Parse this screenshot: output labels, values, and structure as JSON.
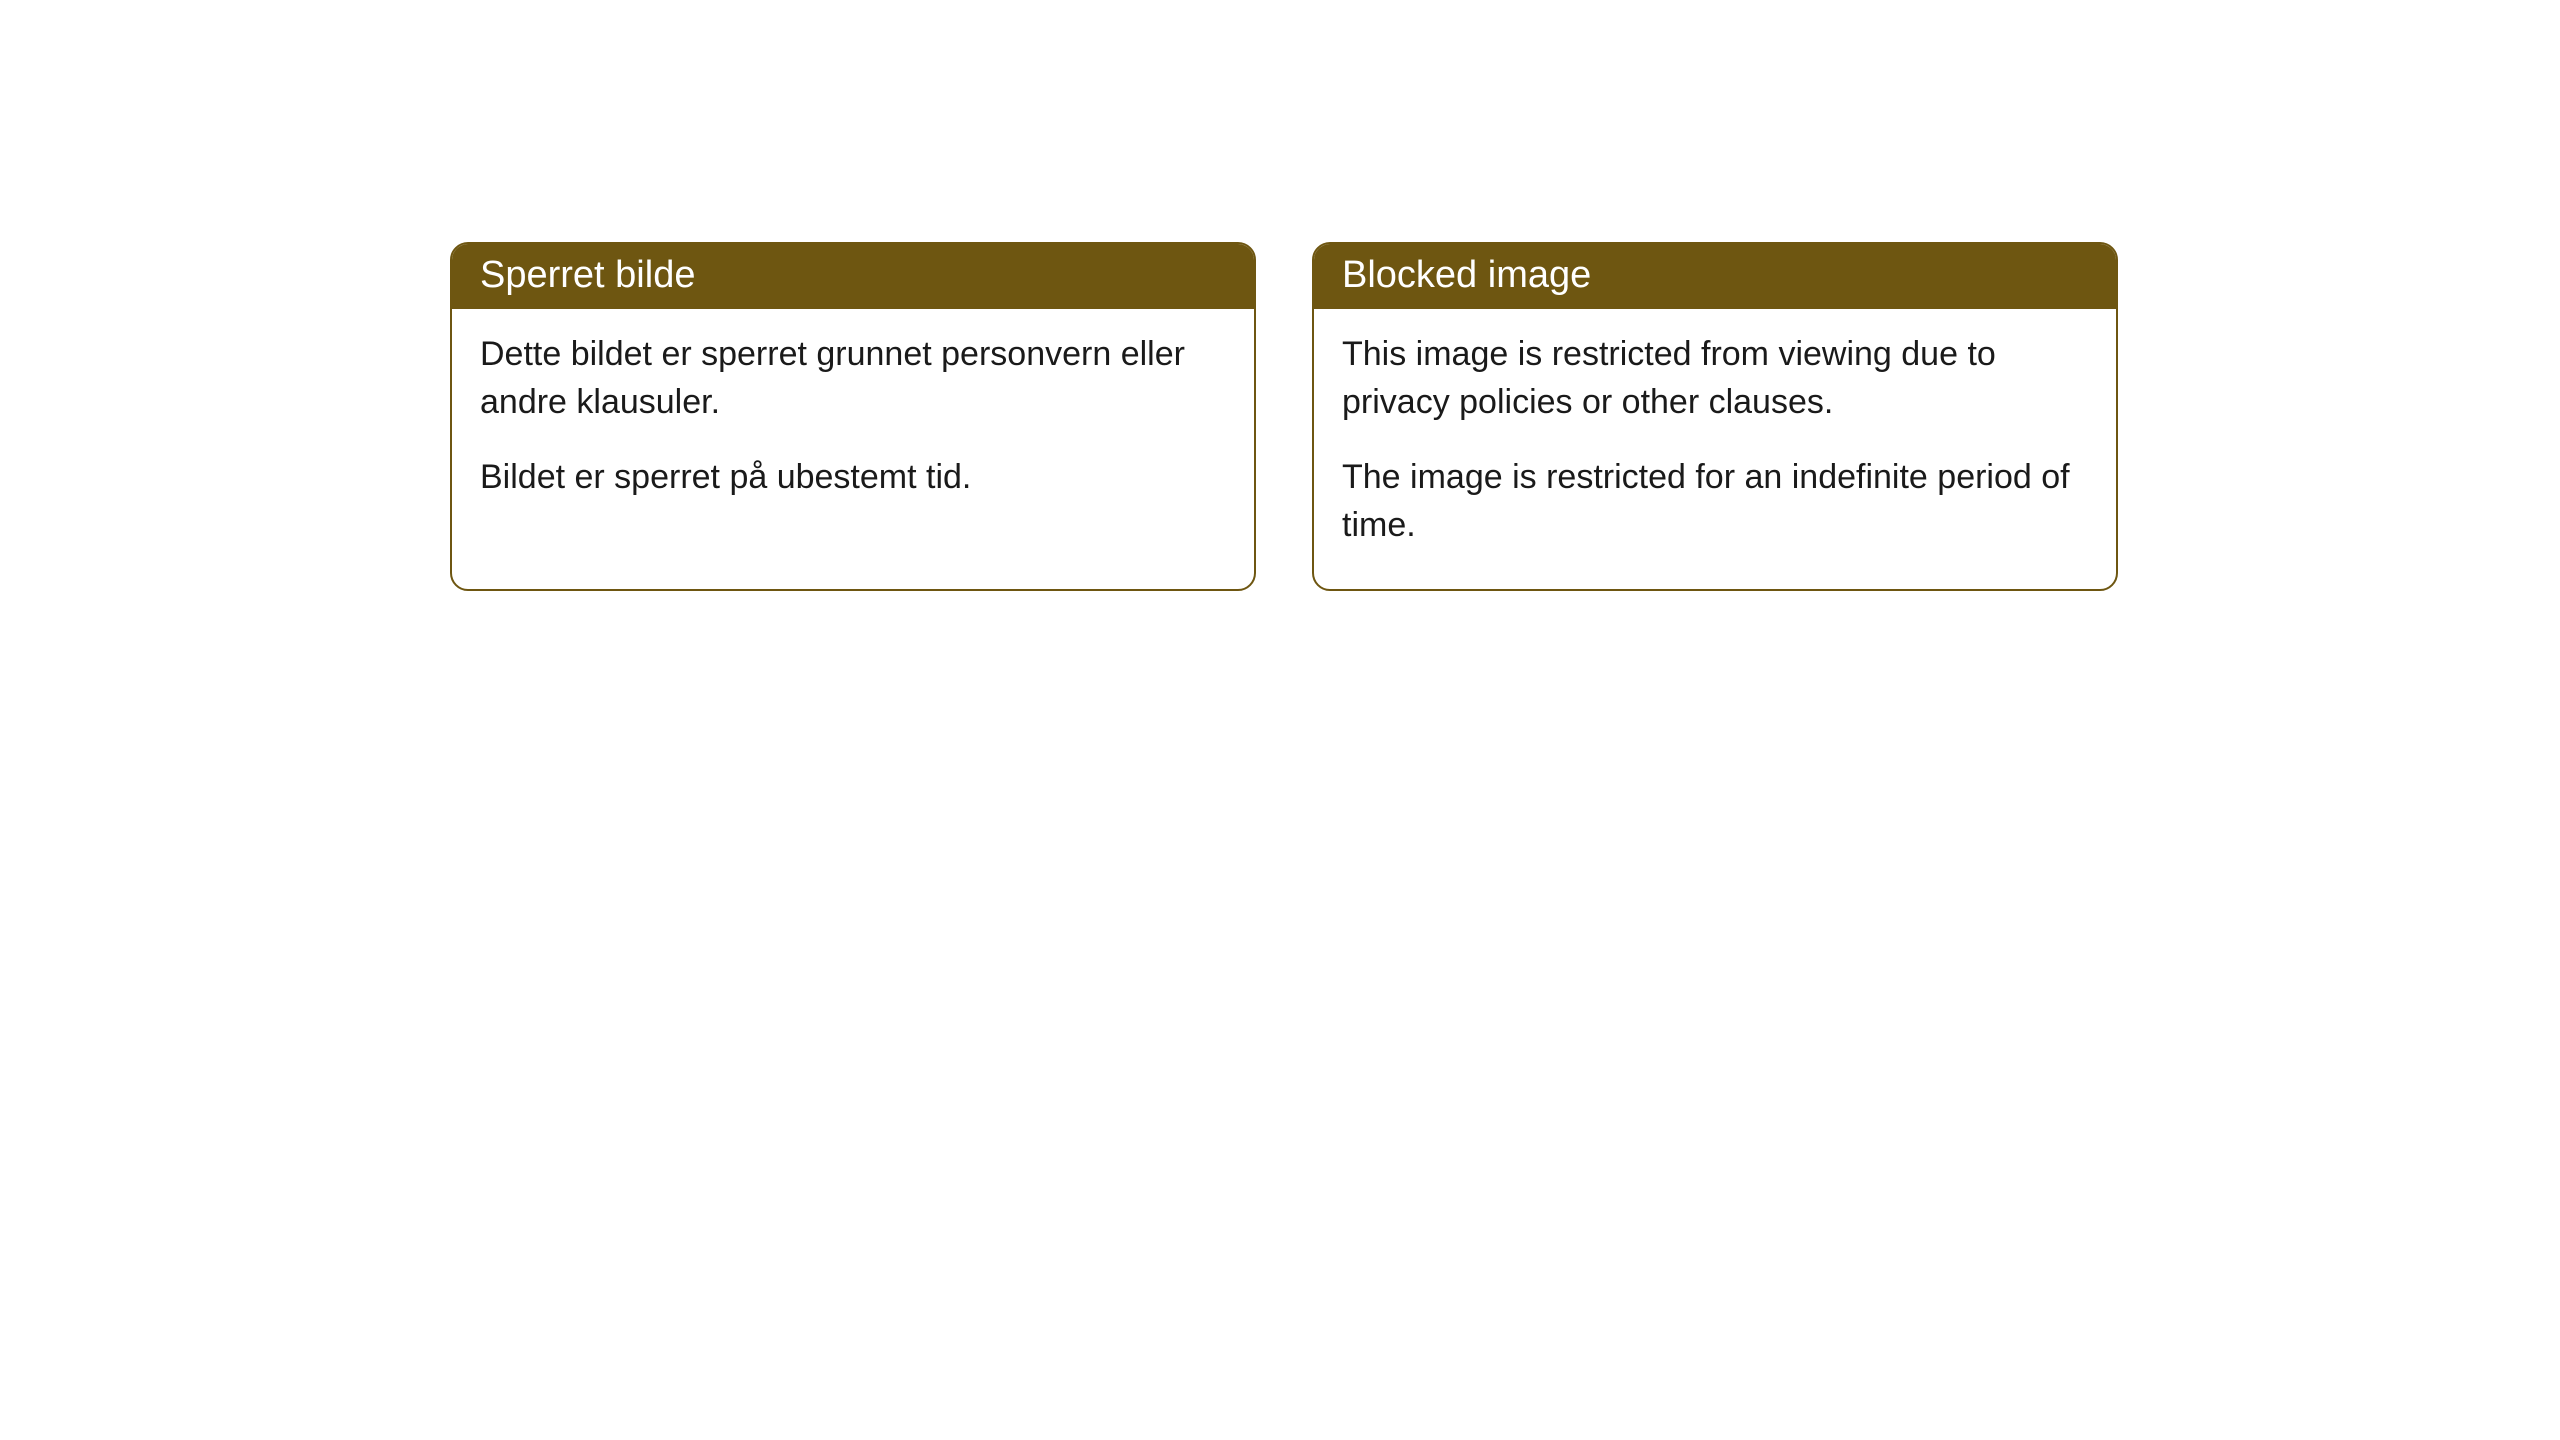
{
  "cards": [
    {
      "title": "Sperret bilde",
      "paragraph1": "Dette bildet er sperret grunnet personvern eller andre klausuler.",
      "paragraph2": "Bildet er sperret på ubestemt tid."
    },
    {
      "title": "Blocked image",
      "paragraph1": "This image is restricted from viewing due to privacy policies or other clauses.",
      "paragraph2": "The image is restricted for an indefinite period of time."
    }
  ],
  "styling": {
    "header_background": "#6e5611",
    "header_text_color": "#ffffff",
    "border_color": "#6e5611",
    "card_background": "#ffffff",
    "body_text_color": "#1a1a1a",
    "border_radius": 18,
    "title_fontsize": 38,
    "body_fontsize": 34
  }
}
